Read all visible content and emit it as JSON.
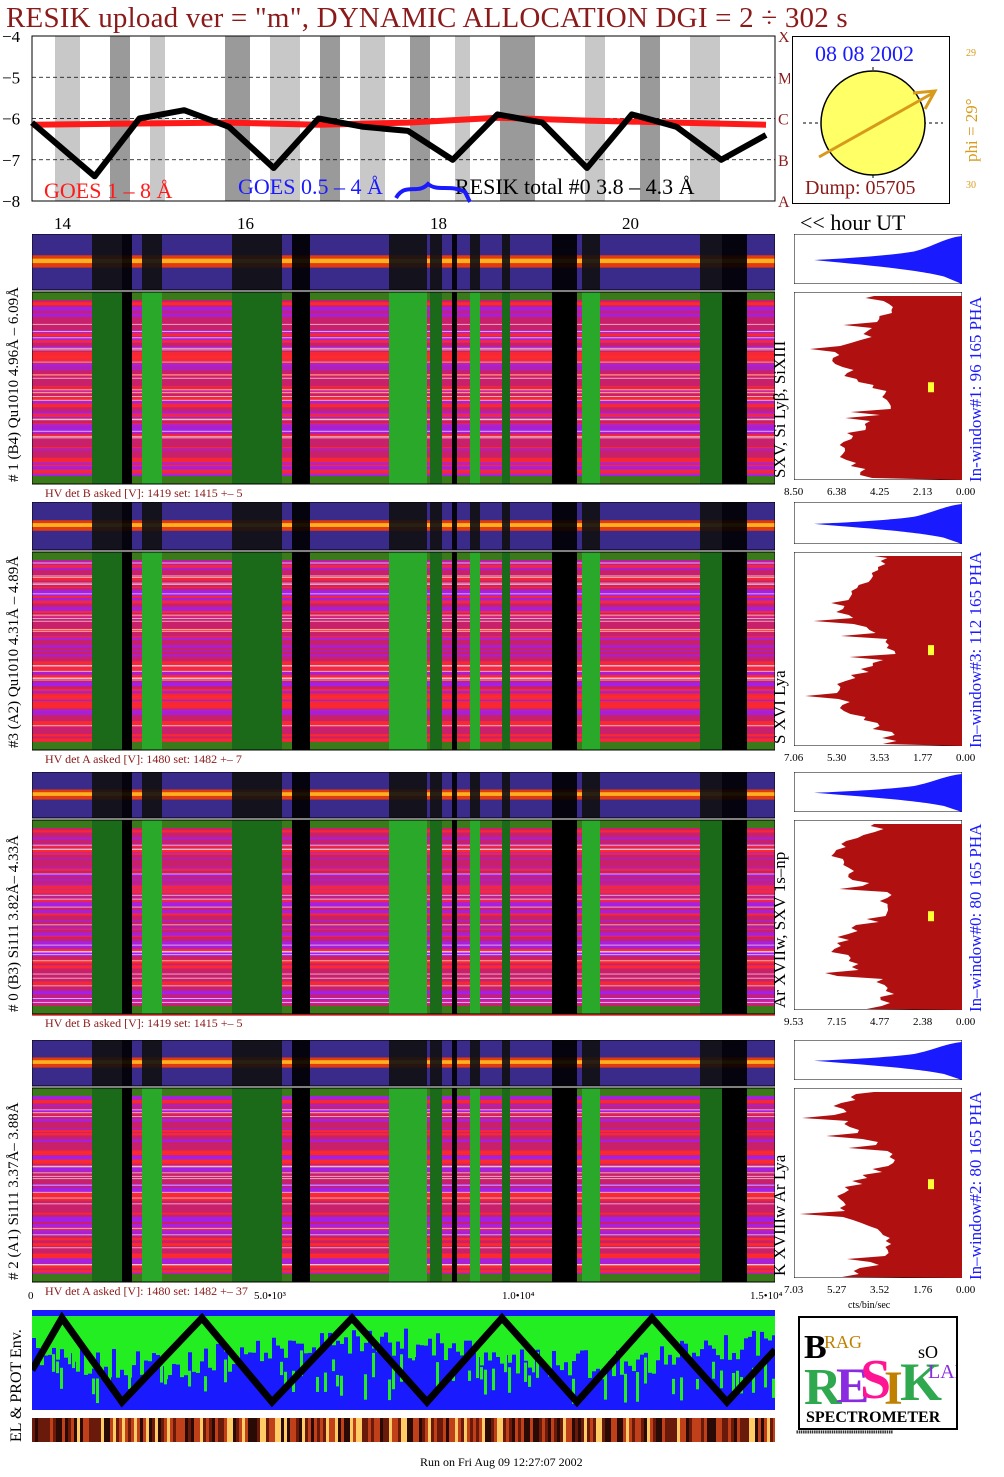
{
  "header": {
    "title": "RESIK upload ver = \"m\", DYNAMIC ALLOCATION  DGI =   2 ÷ 302 s"
  },
  "goes": {
    "y_ticks": [
      "−4",
      "−5",
      "−6",
      "−7",
      "−8"
    ],
    "class_letters": [
      "X",
      "M",
      "C",
      "B",
      "A"
    ],
    "legend_goes_long": "GOES 1 – 8 Å",
    "legend_goes_short": "GOES 0.5 – 4 Å",
    "legend_resik": "RESIK total #0  3.8 – 4.3 Å",
    "x_ticks": [
      "14",
      "16",
      "18",
      "20"
    ],
    "x_axis_note": "<< hour UT",
    "colors": {
      "long": "#ff1a1a",
      "short": "#1a1aff",
      "resik": "#000000"
    }
  },
  "sun_panel": {
    "date": "08 08 2002",
    "phi_label": "phi = 29°",
    "phi_top": "29",
    "phi_bottom": "30",
    "dump": "Dump: 05705"
  },
  "channels": [
    {
      "left_label": "# 1 (B4) Qu1010 4.96Å – 6.09Å",
      "hv": "HV det B asked [V]:  1419 set:  1415 +–    5",
      "line_label": "SXV, Si Lyβ, SiXIII",
      "window_label": "In-window#1:   96 165  PHA",
      "x_ticks": [
        "8.50",
        "6.38",
        "4.25",
        "2.13",
        "0.00"
      ]
    },
    {
      "left_label": "#3 (A2) Qu1010  4.31Å – 4.89Å",
      "hv": "HV det A asked [V]:  1480 set:  1482  +–    7",
      "line_label": "S XVI Lya",
      "window_label": "In–window#3:   112 165  PHA",
      "x_ticks": [
        "7.06",
        "5.30",
        "3.53",
        "1.77",
        "0.00"
      ]
    },
    {
      "left_label": "# 0 (B3) Si111  3.82Å– 4.33Å",
      "hv": "HV det B asked [V]:  1419 set:  1415 +–    5",
      "line_label": "Ar XVIIw,  SXV  1s–np",
      "window_label": "In–window#0:   80 165  PHA",
      "x_ticks": [
        "9.53",
        "7.15",
        "4.77",
        "2.38",
        "0.00"
      ]
    },
    {
      "left_label": "# 2 (A1) Si111  3.37Å– 3.88Å",
      "hv": "HV det A asked [V]:  1480 set:  1482 +–  37",
      "line_label": "K XVIIIw  Ar Lya",
      "window_label": "In–window#2:   80 165  PHA",
      "x_ticks": [
        "7.03",
        "5.27",
        "3.52",
        "1.76",
        "0.00"
      ]
    }
  ],
  "spectrum_xunit": "cts/bin/sec",
  "bottom_axis": {
    "ticks": [
      "0",
      "5.0•10³",
      "1.0•10⁴",
      "1.5•10⁴"
    ]
  },
  "env_label": "EL & PROT Env.",
  "logo": {
    "letters_bragg": "BRAG",
    "letters_resik": "RESIK",
    "letters_solar": "SOLAR",
    "spectrometer": "SPECTROMETER"
  },
  "footer": "Run on Fri Aug 09 12:27:07 2002",
  "chart_data": {
    "type": "line",
    "title": "RESIK upload ver = \"m\", DYNAMIC ALLOCATION  DGI =   2 ÷ 302 s",
    "xlabel": "<< hour UT",
    "ylabel": "",
    "x_ticks": [
      "14",
      "16",
      "18",
      "20"
    ],
    "ylim": [
      -8,
      -4
    ],
    "series": [
      {
        "name": "GOES 1 – 8 Å",
        "x": [
          13.3,
          14.5,
          15.5,
          16.5,
          17.5,
          18.5,
          19.5,
          20.5,
          21.5
        ],
        "values": [
          -6.15,
          -6.12,
          -6.1,
          -6.15,
          -6.1,
          -5.98,
          -6.05,
          -6.1,
          -6.15
        ]
      },
      {
        "name": "RESIK total #0  3.8 – 4.3 Å",
        "x": [
          13.3,
          14.0,
          14.5,
          15.0,
          15.5,
          16.0,
          16.5,
          17.0,
          17.5,
          18.0,
          18.5,
          19.0,
          19.5,
          20.0,
          20.5,
          21.0,
          21.5
        ],
        "values": [
          -6.1,
          -7.4,
          -6.0,
          -5.8,
          -6.2,
          -7.2,
          -6.0,
          -6.2,
          -6.3,
          -7.0,
          -5.9,
          -6.1,
          -7.2,
          -5.9,
          -6.2,
          -7.0,
          -6.4
        ]
      }
    ]
  }
}
